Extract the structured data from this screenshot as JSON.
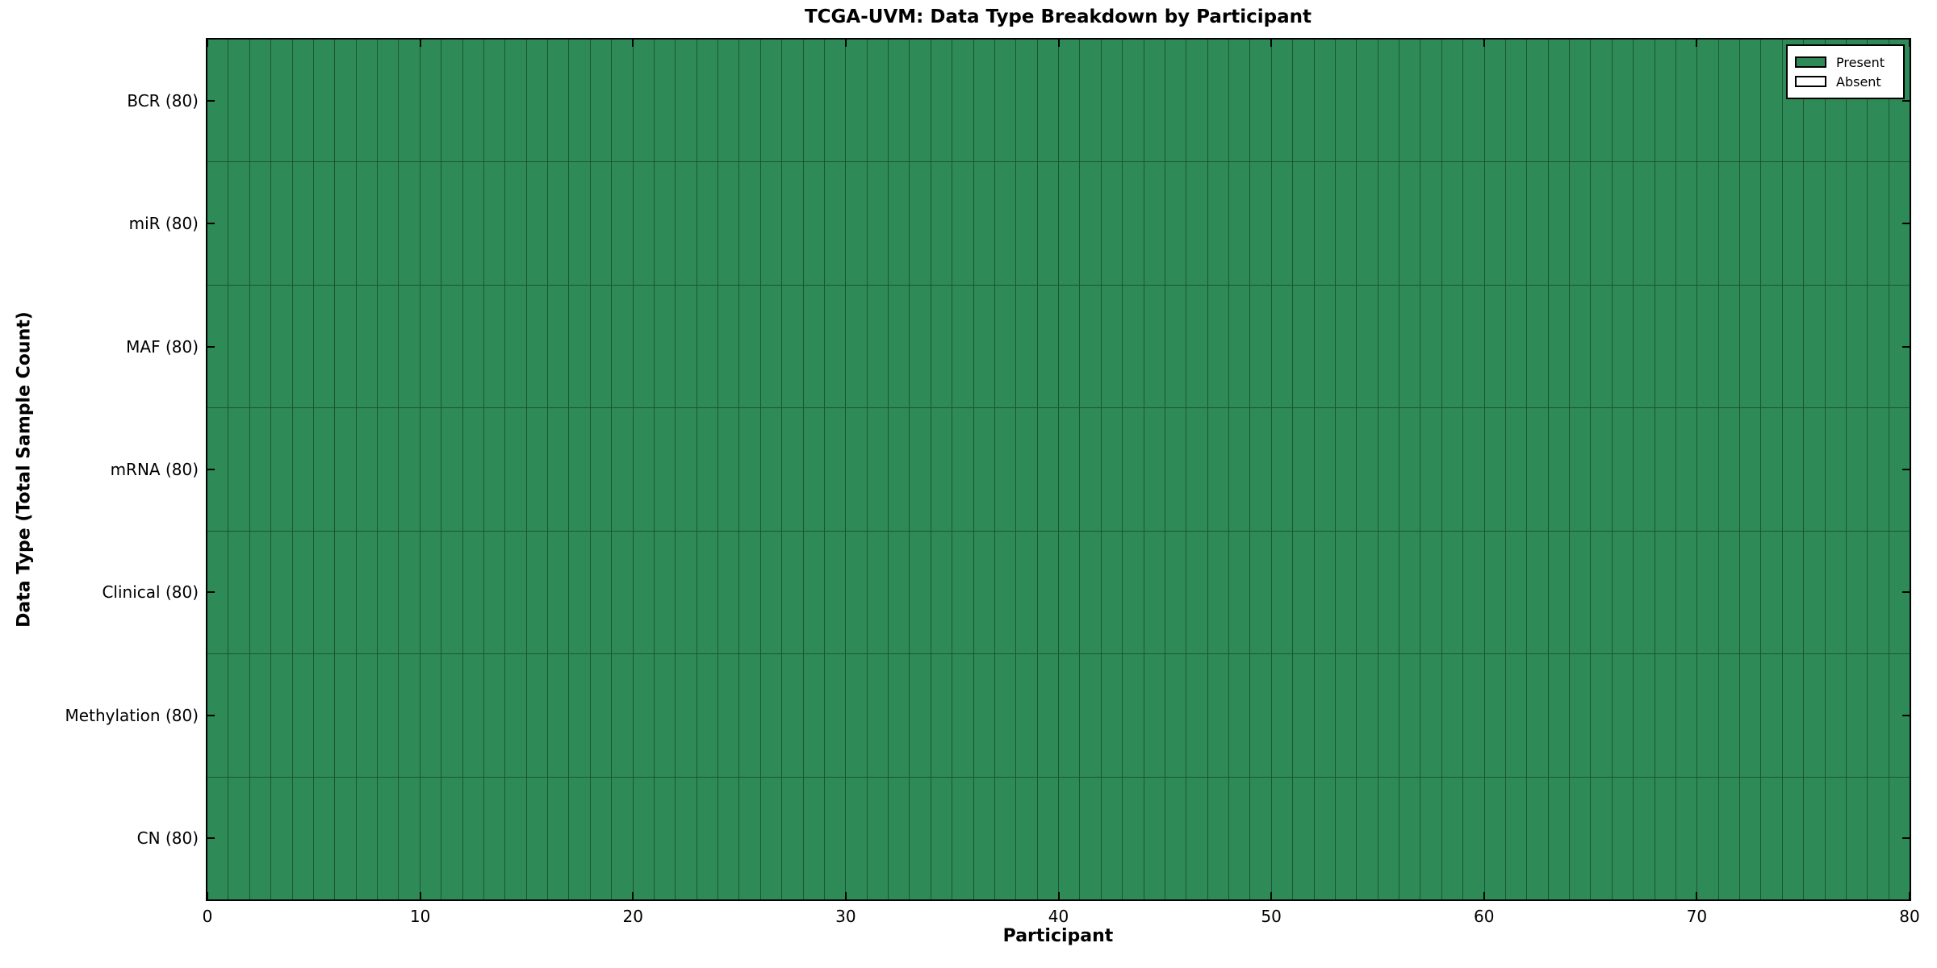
{
  "chart_data": {
    "type": "heatmap",
    "title": "TCGA-UVM: Data Type Breakdown by Participant",
    "xlabel": "Participant",
    "ylabel": "Data Type (Total Sample Count)",
    "xlim": [
      0,
      80
    ],
    "x_ticks": [
      0,
      10,
      20,
      30,
      40,
      50,
      60,
      70,
      80
    ],
    "n_participants": 80,
    "grid": "cell borders visible, black frame, inward ticks on all four sides",
    "legend_position": "upper right",
    "rows": [
      {
        "label": "BCR (80)",
        "name": "BCR",
        "total_samples": 80,
        "present_count": 80,
        "absent_count": 0
      },
      {
        "label": "miR (80)",
        "name": "miR",
        "total_samples": 80,
        "present_count": 80,
        "absent_count": 0
      },
      {
        "label": "MAF (80)",
        "name": "MAF",
        "total_samples": 80,
        "present_count": 80,
        "absent_count": 0
      },
      {
        "label": "mRNA (80)",
        "name": "mRNA",
        "total_samples": 80,
        "present_count": 80,
        "absent_count": 0
      },
      {
        "label": "Clinical (80)",
        "name": "Clinical",
        "total_samples": 80,
        "present_count": 80,
        "absent_count": 0
      },
      {
        "label": "Methylation (80)",
        "name": "Methylation",
        "total_samples": 80,
        "present_count": 80,
        "absent_count": 0
      },
      {
        "label": "CN (80)",
        "name": "CN",
        "total_samples": 80,
        "present_count": 80,
        "absent_count": 0
      }
    ],
    "all_cells_present": true,
    "legend": {
      "entries": [
        {
          "label": "Present",
          "color": "#2e8b57"
        },
        {
          "label": "Absent",
          "color": "#ffffff"
        }
      ]
    },
    "colors": {
      "present": "#2e8b57",
      "absent": "#ffffff",
      "cell_edge": "#1c5434",
      "frame": "#000000",
      "text": "#000000",
      "background": "#ffffff"
    }
  }
}
